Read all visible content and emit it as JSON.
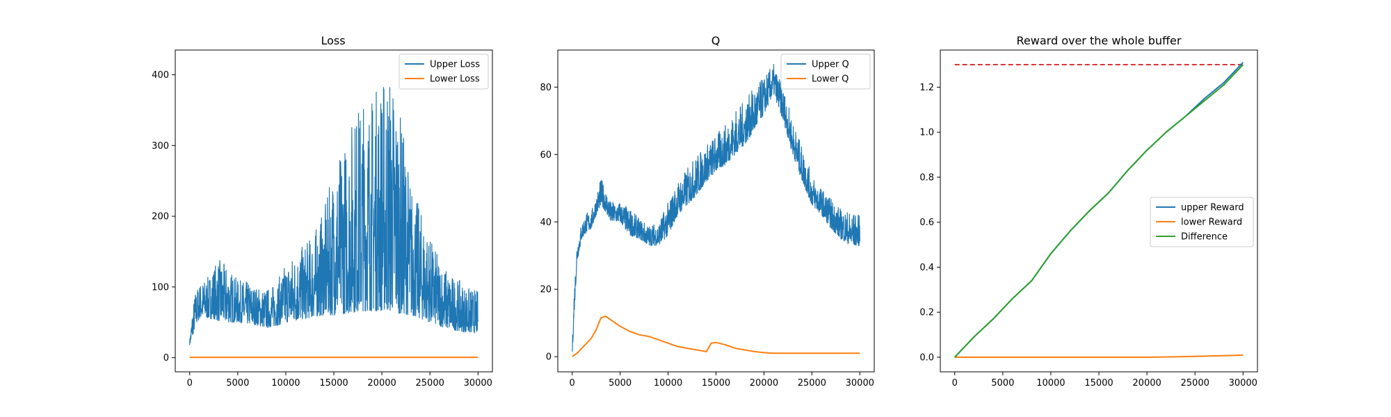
{
  "colors": {
    "upper": "#1f77b4",
    "lower": "#ff7f0e",
    "difference": "#2ca02c",
    "reference": "#d62728",
    "axes": "#000000",
    "background": "#ffffff"
  },
  "chart_data": [
    {
      "type": "line",
      "title": "Loss",
      "xlabel": "",
      "ylabel": "",
      "xlim": [
        -1500,
        31500
      ],
      "ylim": [
        -20,
        435
      ],
      "xticks": [
        0,
        5000,
        10000,
        15000,
        20000,
        25000,
        30000
      ],
      "xtick_labels": [
        "0",
        "5000",
        "10000",
        "15000",
        "20000",
        "25000",
        "30000"
      ],
      "yticks": [
        0,
        100,
        200,
        300,
        400
      ],
      "ytick_labels": [
        "0",
        "100",
        "200",
        "300",
        "400"
      ],
      "grid": false,
      "legend": {
        "placement": "top-right",
        "entries": [
          "Upper Loss",
          "Lower Loss"
        ]
      },
      "series": [
        {
          "name": "Upper Loss",
          "color": "#1f77b4",
          "style": "noisy_band",
          "x": [
            0,
            300,
            600,
            1000,
            1500,
            2000,
            2500,
            3000,
            4000,
            5000,
            6000,
            7000,
            8000,
            9000,
            10000,
            11000,
            12000,
            13000,
            14000,
            15000,
            16000,
            17000,
            18000,
            19000,
            20000,
            21000,
            22000,
            23000,
            24000,
            25000,
            26000,
            27000,
            28000,
            29000,
            30000
          ],
          "low": [
            18,
            30,
            45,
            55,
            58,
            55,
            55,
            52,
            50,
            50,
            48,
            46,
            42,
            45,
            50,
            52,
            55,
            58,
            60,
            60,
            62,
            64,
            66,
            66,
            66,
            65,
            62,
            60,
            55,
            50,
            45,
            40,
            38,
            35,
            35
          ],
          "high": [
            25,
            70,
            95,
            105,
            110,
            115,
            130,
            140,
            128,
            110,
            108,
            100,
            98,
            105,
            135,
            150,
            160,
            180,
            210,
            270,
            300,
            345,
            370,
            375,
            400,
            410,
            340,
            250,
            210,
            170,
            140,
            120,
            110,
            100,
            95
          ]
        },
        {
          "name": "Lower Loss",
          "color": "#ff7f0e",
          "style": "line",
          "x": [
            0,
            5000,
            10000,
            15000,
            20000,
            25000,
            30000
          ],
          "y": [
            0.5,
            0.5,
            0.5,
            0.5,
            0.5,
            0.5,
            0.5
          ]
        }
      ]
    },
    {
      "type": "line",
      "title": "Q",
      "xlabel": "",
      "ylabel": "",
      "xlim": [
        -1500,
        31500
      ],
      "ylim": [
        -4.5,
        91
      ],
      "xticks": [
        0,
        5000,
        10000,
        15000,
        20000,
        25000,
        30000
      ],
      "xtick_labels": [
        "0",
        "5000",
        "10000",
        "15000",
        "20000",
        "25000",
        "30000"
      ],
      "yticks": [
        0,
        20,
        40,
        60,
        80
      ],
      "ytick_labels": [
        "0",
        "20",
        "40",
        "60",
        "80"
      ],
      "grid": false,
      "legend": {
        "placement": "top-right",
        "entries": [
          "Upper Q",
          "Lower Q"
        ]
      },
      "series": [
        {
          "name": "Upper Q",
          "color": "#1f77b4",
          "style": "noisy_band",
          "x": [
            0,
            200,
            500,
            1000,
            1500,
            2000,
            2500,
            3000,
            3500,
            4000,
            5000,
            6000,
            7000,
            8000,
            9000,
            10000,
            11000,
            12000,
            13000,
            14000,
            15000,
            16000,
            17000,
            18000,
            19000,
            20000,
            21000,
            22000,
            23000,
            24000,
            25000,
            26000,
            27000,
            28000,
            29000,
            30000
          ],
          "low": [
            0,
            12,
            28,
            35,
            37,
            38,
            42,
            45,
            43,
            40,
            40,
            36,
            35,
            33,
            33,
            36,
            42,
            45,
            48,
            52,
            55,
            57,
            60,
            63,
            67,
            72,
            78,
            70,
            60,
            52,
            45,
            42,
            38,
            35,
            33,
            33
          ],
          "high": [
            3,
            20,
            34,
            40,
            43,
            43,
            48,
            53,
            50,
            46,
            46,
            44,
            41,
            39,
            40,
            46,
            52,
            56,
            60,
            63,
            66,
            69,
            73,
            76,
            80,
            83,
            87,
            80,
            70,
            62,
            54,
            50,
            47,
            44,
            43,
            42
          ]
        },
        {
          "name": "Lower Q",
          "color": "#ff7f0e",
          "style": "line",
          "x": [
            0,
            500,
            1000,
            1500,
            2000,
            2500,
            3000,
            3500,
            4000,
            5000,
            6000,
            7000,
            8000,
            9000,
            10000,
            11000,
            12000,
            13000,
            14000,
            14500,
            15000,
            16000,
            17000,
            18000,
            19000,
            20000,
            21000,
            22000,
            25000,
            30000
          ],
          "y": [
            0,
            1,
            2.5,
            4,
            5.5,
            8,
            11.5,
            12,
            11,
            9,
            7.5,
            6.5,
            6,
            5,
            4,
            3,
            2.5,
            2,
            1.5,
            4,
            4.2,
            3.5,
            2.5,
            2,
            1.5,
            1.2,
            1,
            1,
            1,
            1
          ]
        }
      ]
    },
    {
      "type": "line",
      "title": "Reward over the whole buffer",
      "xlabel": "",
      "ylabel": "",
      "xlim": [
        -1500,
        31500
      ],
      "ylim": [
        -0.065,
        1.365
      ],
      "xticks": [
        0,
        5000,
        10000,
        15000,
        20000,
        25000,
        30000
      ],
      "xtick_labels": [
        "0",
        "5000",
        "10000",
        "15000",
        "20000",
        "25000",
        "30000"
      ],
      "yticks": [
        0,
        0.2,
        0.4,
        0.6,
        0.8,
        1.0,
        1.2
      ],
      "ytick_labels": [
        "0.0",
        "0.2",
        "0.4",
        "0.6",
        "0.8",
        "1.0",
        "1.2"
      ],
      "grid": false,
      "legend": {
        "placement": "center-right",
        "entries": [
          "upper Reward",
          "lower Reward",
          "Difference"
        ]
      },
      "reference_line": {
        "y": 1.3,
        "x": [
          0,
          30000
        ],
        "color": "#d62728",
        "style": "dashed"
      },
      "series": [
        {
          "name": "upper Reward",
          "color": "#1f77b4",
          "style": "line",
          "x": [
            0,
            2000,
            4000,
            6000,
            8000,
            10000,
            12000,
            14000,
            16000,
            18000,
            20000,
            22000,
            24000,
            26000,
            28000,
            30000
          ],
          "y": [
            0.0,
            0.09,
            0.17,
            0.26,
            0.34,
            0.46,
            0.56,
            0.65,
            0.73,
            0.83,
            0.92,
            1.0,
            1.07,
            1.15,
            1.22,
            1.31
          ]
        },
        {
          "name": "lower Reward",
          "color": "#ff7f0e",
          "style": "line",
          "x": [
            0,
            5000,
            10000,
            15000,
            20000,
            22000,
            25000,
            28000,
            30000
          ],
          "y": [
            0.0,
            0.0,
            0.0,
            0.0,
            0.0,
            0.001,
            0.004,
            0.007,
            0.009
          ]
        },
        {
          "name": "Difference",
          "color": "#2ca02c",
          "style": "line",
          "x": [
            0,
            2000,
            4000,
            6000,
            8000,
            10000,
            12000,
            14000,
            16000,
            18000,
            20000,
            22000,
            24000,
            26000,
            28000,
            30000
          ],
          "y": [
            0.0,
            0.09,
            0.17,
            0.26,
            0.34,
            0.46,
            0.56,
            0.65,
            0.73,
            0.83,
            0.92,
            1.0,
            1.07,
            1.14,
            1.21,
            1.3
          ]
        }
      ]
    }
  ]
}
